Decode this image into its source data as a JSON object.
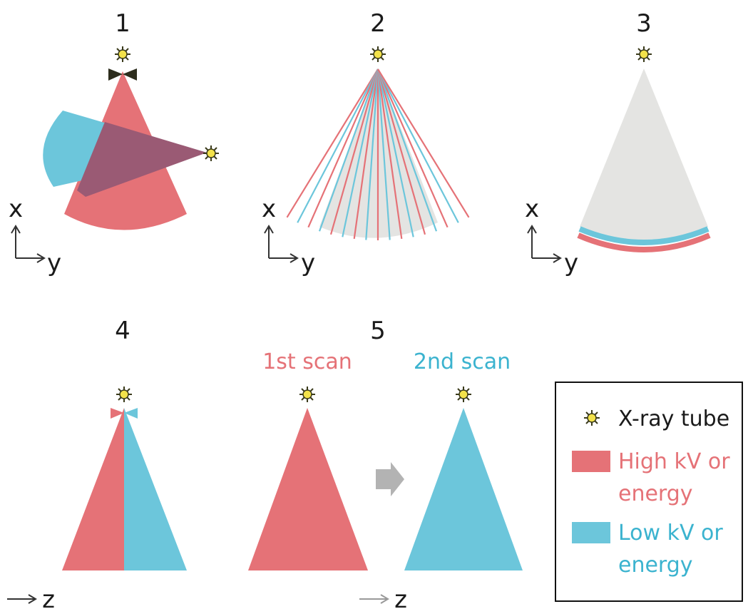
{
  "panels": [
    {
      "number": "1",
      "axes": {
        "vertical": "x",
        "horizontal": "y"
      }
    },
    {
      "number": "2",
      "axes": {
        "vertical": "x",
        "horizontal": "y"
      }
    },
    {
      "number": "3",
      "axes": {
        "vertical": "x",
        "horizontal": "y"
      }
    },
    {
      "number": "4",
      "axes": {
        "horizontal": "z"
      }
    },
    {
      "number": "5",
      "axes": {
        "horizontal": "z"
      },
      "first_scan": "1st scan",
      "second_scan": "2nd scan"
    }
  ],
  "legend": {
    "tube": "X-ray tube",
    "high_line1": "High kV or",
    "high_line2": "energy",
    "low_line1": "Low kV or",
    "low_line2": "energy"
  },
  "colors": {
    "high": "#e57277",
    "low": "#6cc6db",
    "overlap": "#9a5a74",
    "detector_gray": "#e4e4e2",
    "tube_yellow": "#f3e24a",
    "arrow_gray": "#b3b3b3"
  }
}
